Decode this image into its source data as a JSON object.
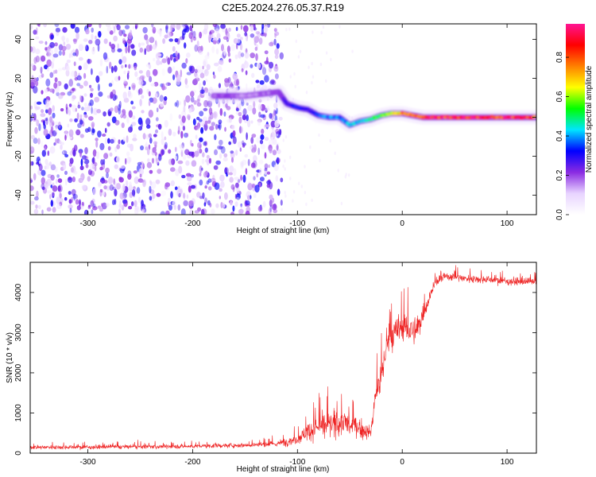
{
  "title": "C2E5.2024.276.05.37.R19",
  "chart_data": [
    {
      "type": "heatmap",
      "xlabel": "Height of straight line (km)",
      "ylabel": "Frequency (Hz)",
      "xlim": [
        -355,
        128
      ],
      "ylim": [
        -50,
        48
      ],
      "x_ticks": [
        -300,
        -200,
        -100,
        0,
        100
      ],
      "x_tick_labels": [
        "-300",
        "-200",
        "-100",
        "0",
        "100"
      ],
      "y_ticks": [
        -40,
        -20,
        0,
        20,
        40
      ],
      "y_tick_labels": [
        "-40",
        "-20",
        "0",
        "20",
        "40"
      ],
      "grid": false,
      "noise_region_x": [
        -355,
        -115
      ],
      "noise_level": 0.12,
      "signal_track": [
        {
          "x": -180,
          "y": 11,
          "amp": 0.18
        },
        {
          "x": -165,
          "y": 11,
          "amp": 0.22
        },
        {
          "x": -150,
          "y": 11,
          "amp": 0.15
        },
        {
          "x": -118,
          "y": 13,
          "amp": 0.2
        },
        {
          "x": -110,
          "y": 7,
          "amp": 0.3
        },
        {
          "x": -100,
          "y": 5,
          "amp": 0.32
        },
        {
          "x": -90,
          "y": 4,
          "amp": 0.3
        },
        {
          "x": -80,
          "y": 1,
          "amp": 0.35
        },
        {
          "x": -70,
          "y": 0,
          "amp": 0.4
        },
        {
          "x": -60,
          "y": 0,
          "amp": 0.38
        },
        {
          "x": -50,
          "y": -4,
          "amp": 0.42
        },
        {
          "x": -40,
          "y": -2,
          "amp": 0.45
        },
        {
          "x": -30,
          "y": -1,
          "amp": 0.48
        },
        {
          "x": -20,
          "y": 1,
          "amp": 0.55
        },
        {
          "x": -10,
          "y": 2,
          "amp": 0.62
        },
        {
          "x": 0,
          "y": 2,
          "amp": 0.75
        },
        {
          "x": 20,
          "y": 0,
          "amp": 0.88
        },
        {
          "x": 40,
          "y": 0,
          "amp": 0.9
        },
        {
          "x": 60,
          "y": 0,
          "amp": 0.92
        },
        {
          "x": 80,
          "y": 0,
          "amp": 0.9
        },
        {
          "x": 100,
          "y": 0,
          "amp": 0.88
        },
        {
          "x": 128,
          "y": 0,
          "amp": 0.85
        }
      ],
      "colorbar": {
        "label": "Normalized spectral amplitude",
        "range": [
          0,
          0.97
        ],
        "ticks": [
          0.0,
          0.2,
          0.4,
          0.6,
          0.8
        ],
        "tick_labels": [
          "0.0",
          "0.2",
          "0.4",
          "0.6",
          "0.8"
        ],
        "colormap": [
          "#ffffff",
          "#e8d4ff",
          "#8a2be2",
          "#0000ff",
          "#00e5ff",
          "#00ff00",
          "#ffff00",
          "#ff8000",
          "#ff0000",
          "#ff1493"
        ]
      }
    },
    {
      "type": "line",
      "xlabel": "Height of straight line (km)",
      "ylabel": "SNR (10 * v/v)",
      "xlim": [
        -355,
        128
      ],
      "ylim": [
        0,
        4750
      ],
      "x_ticks": [
        -300,
        -200,
        -100,
        0,
        100
      ],
      "x_tick_labels": [
        "-300",
        "-200",
        "-100",
        "0",
        "100"
      ],
      "y_ticks": [
        0,
        1000,
        2000,
        3000,
        4000
      ],
      "y_tick_labels": [
        "0",
        "1000",
        "2000",
        "3000",
        "4000"
      ],
      "grid": false,
      "series": [
        {
          "color": "#ee2222",
          "x": [
            -355,
            -300,
            -250,
            -200,
            -150,
            -120,
            -100,
            -90,
            -80,
            -70,
            -60,
            -55,
            -50,
            -45,
            -40,
            -35,
            -30,
            -27,
            -25,
            -22,
            -20,
            -18,
            -15,
            -10,
            -5,
            0,
            5,
            10,
            15,
            20,
            25,
            30,
            40,
            50,
            60,
            80,
            100,
            128
          ],
          "y": [
            150,
            150,
            160,
            170,
            200,
            230,
            350,
            550,
            650,
            700,
            750,
            800,
            650,
            700,
            600,
            550,
            500,
            1100,
            1500,
            1700,
            1900,
            2200,
            2700,
            2900,
            3000,
            3200,
            3100,
            3000,
            3100,
            3500,
            3800,
            4200,
            4400,
            4400,
            4350,
            4330,
            4280,
            4250
          ],
          "noise": [
            80,
            80,
            80,
            80,
            90,
            120,
            200,
            350,
            450,
            500,
            500,
            550,
            400,
            400,
            350,
            300,
            250,
            450,
            550,
            600,
            600,
            650,
            700,
            700,
            650,
            600,
            600,
            550,
            500,
            350,
            250,
            200,
            180,
            160,
            160,
            150,
            150,
            150
          ]
        }
      ]
    }
  ]
}
